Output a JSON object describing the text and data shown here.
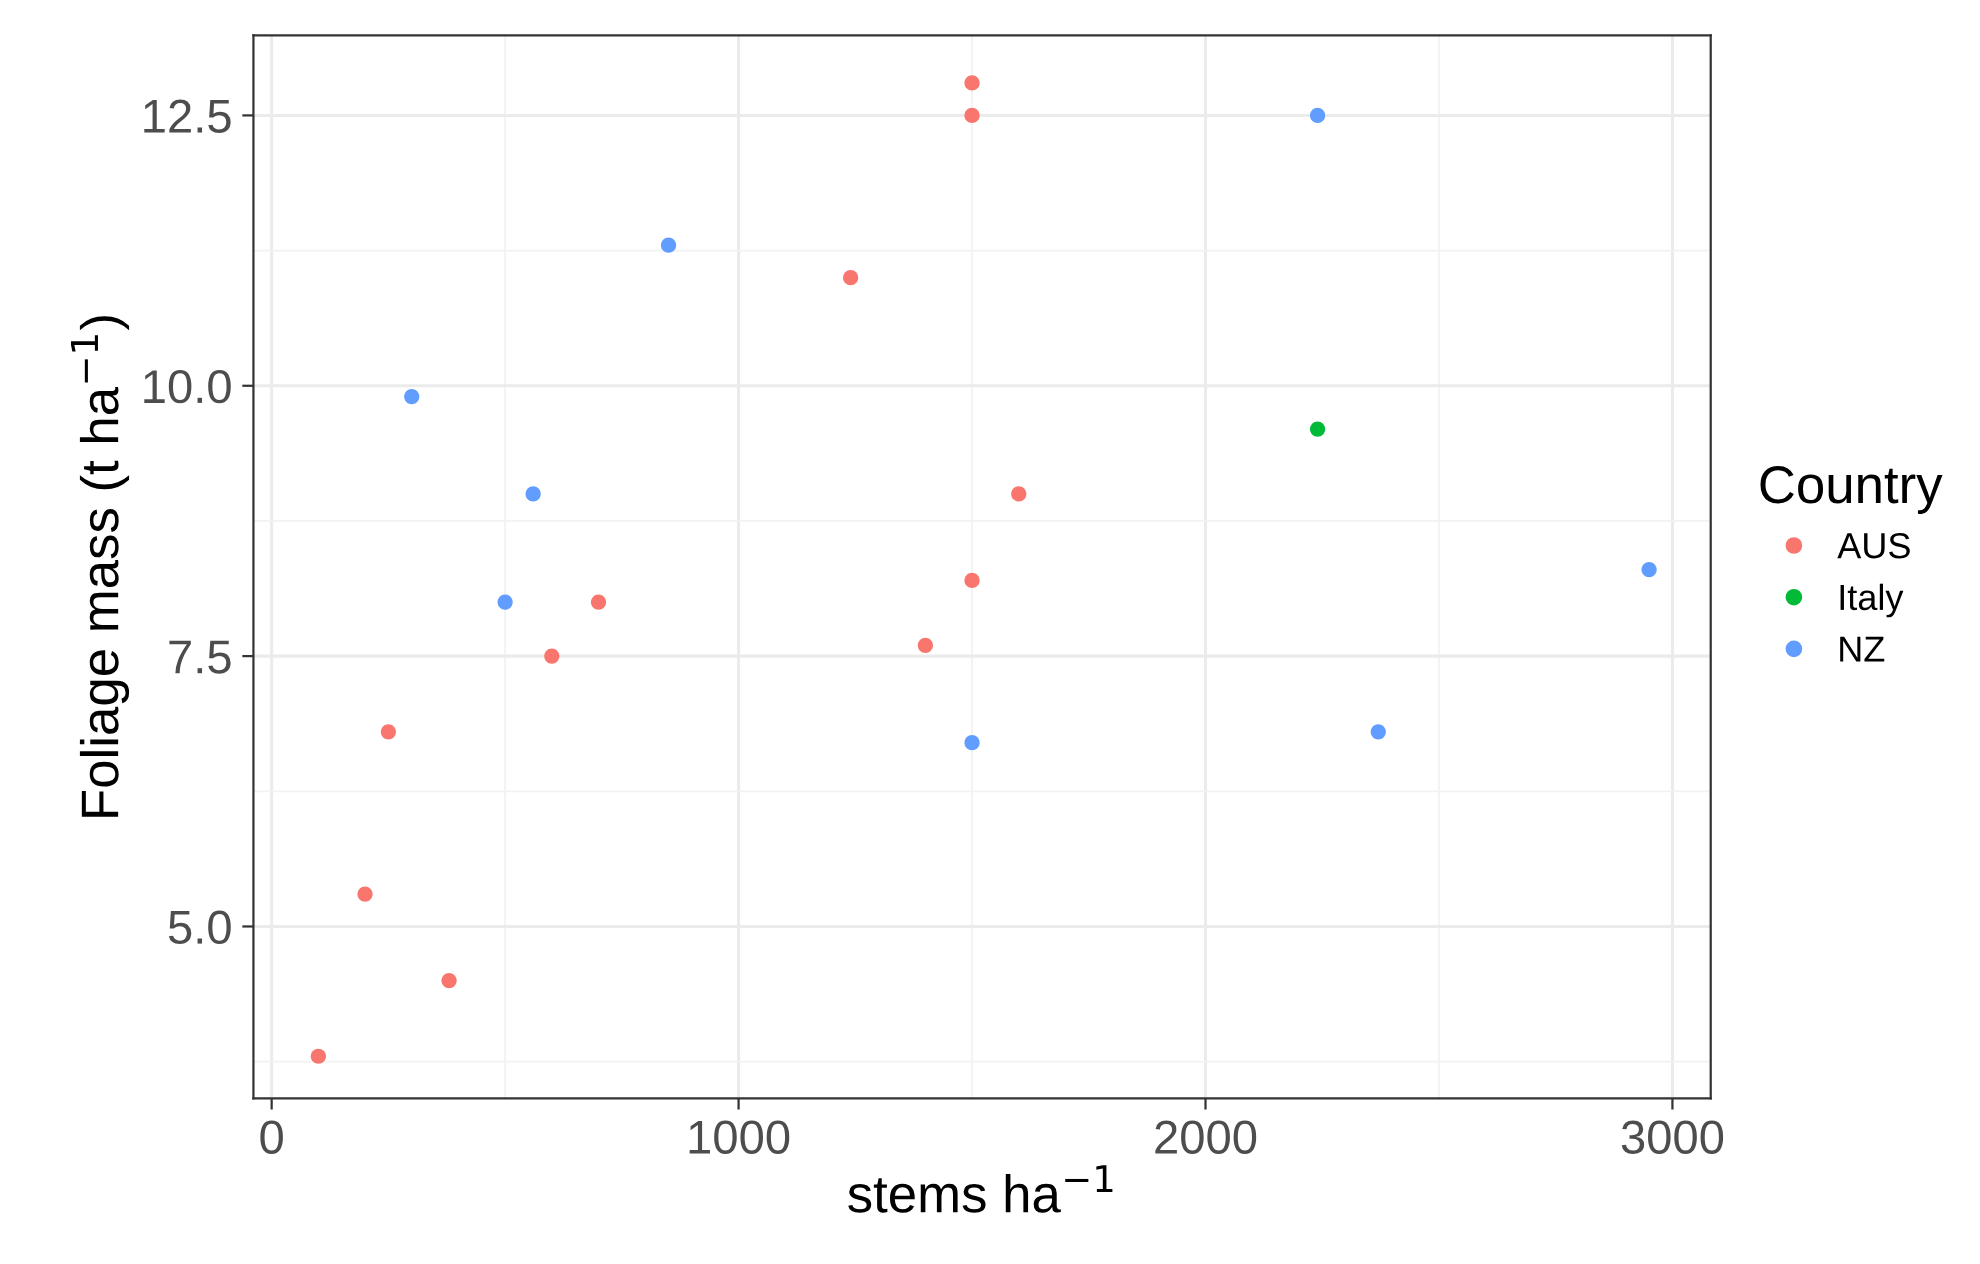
{
  "chart_data": {
    "type": "scatter",
    "xlabel": "stems ha$^{−1}$",
    "ylabel": "Foliage mass (t ha$^{−1}$)",
    "legend_title": "Country",
    "xlim": [
      -39,
      3082
    ],
    "ylim": [
      3.41,
      13.24
    ],
    "xticks": [
      0,
      1000,
      2000,
      3000
    ],
    "yticks": [
      {
        "value": 5,
        "label": "5.0"
      },
      7.5,
      {
        "value": 10,
        "label": "10.0"
      },
      12.5
    ],
    "grid": true,
    "legend": "right",
    "marker": "circle",
    "series": [
      {
        "name": "AUS",
        "color": "#F8766D",
        "x": [
          100,
          200,
          380,
          250,
          600,
          700,
          1240,
          1500,
          1500,
          1500,
          1400,
          1600
        ],
        "values": [
          3.8,
          5.3,
          4.5,
          6.8,
          7.5,
          8.0,
          11.0,
          12.8,
          12.5,
          8.2,
          7.6,
          9.0
        ]
      },
      {
        "name": "Italy",
        "color": "#00BA38",
        "x": [
          2240
        ],
        "values": [
          9.6
        ]
      },
      {
        "name": "NZ",
        "color": "#619CFF",
        "x": [
          300,
          560,
          500,
          850,
          1500,
          2240,
          2370,
          2950
        ],
        "values": [
          9.9,
          9.0,
          8.0,
          11.3,
          6.7,
          12.5,
          6.8,
          8.3
        ]
      }
    ]
  }
}
